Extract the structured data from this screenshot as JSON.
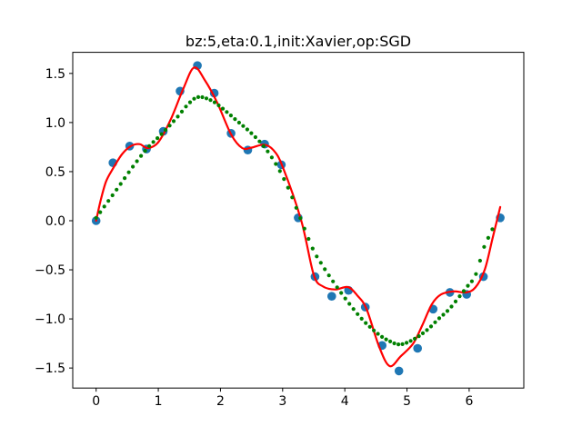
{
  "title": "bz:5,eta:0.1,init:Xavier,op:SGD",
  "colors": {
    "scatter_blue": "#1f77b4",
    "fit_red": "#ff0000",
    "dots_green": "#008000",
    "axis_black": "#000000",
    "background": "#ffffff"
  },
  "axes": {
    "xlim": [
      -0.376,
      6.879
    ],
    "ylim": [
      -1.704,
      1.715
    ],
    "xticks": {
      "values": [
        0,
        1,
        2,
        3,
        4,
        5,
        6
      ],
      "labels": [
        "0",
        "1",
        "2",
        "3",
        "4",
        "5",
        "6"
      ]
    },
    "yticks": {
      "values": [
        -1.5,
        -1.0,
        -0.5,
        0.0,
        0.5,
        1.0,
        1.5
      ],
      "labels": [
        "−1.5",
        "−1.0",
        "−0.5",
        "0.0",
        "0.5",
        "1.0",
        "1.5"
      ]
    }
  },
  "chart_data": {
    "type": "line",
    "title": "bz:5,eta:0.1,init:Xavier,op:SGD",
    "xlabel": "",
    "ylabel": "",
    "xlim": [
      -0.376,
      6.879
    ],
    "ylim": [
      -1.704,
      1.715
    ],
    "grid": false,
    "legend": "none",
    "series": [
      {
        "name": "training-data-scatter",
        "style": "scatter",
        "color": "#1f77b4",
        "marker_radius": 4.8,
        "points": [
          [
            0.0,
            0.0
          ],
          [
            0.27,
            0.59
          ],
          [
            0.54,
            0.76
          ],
          [
            0.81,
            0.73
          ],
          [
            1.08,
            0.91
          ],
          [
            1.35,
            1.32
          ],
          [
            1.63,
            1.58
          ],
          [
            1.9,
            1.3
          ],
          [
            2.17,
            0.89
          ],
          [
            2.44,
            0.72
          ],
          [
            2.71,
            0.78
          ],
          [
            2.98,
            0.57
          ],
          [
            3.25,
            0.03
          ],
          [
            3.52,
            -0.57
          ],
          [
            3.79,
            -0.77
          ],
          [
            4.06,
            -0.71
          ],
          [
            4.33,
            -0.88
          ],
          [
            4.6,
            -1.27
          ],
          [
            4.87,
            -1.53
          ],
          [
            5.17,
            -1.3
          ],
          [
            5.42,
            -0.9
          ],
          [
            5.69,
            -0.73
          ],
          [
            5.96,
            -0.75
          ],
          [
            6.23,
            -0.57
          ],
          [
            6.5,
            0.03
          ]
        ]
      },
      {
        "name": "fit-curve-red",
        "style": "line",
        "color": "#ff0000",
        "line_width": 2.2,
        "points": [
          [
            0.0,
            0.0
          ],
          [
            0.07,
            0.2
          ],
          [
            0.16,
            0.4
          ],
          [
            0.28,
            0.54
          ],
          [
            0.42,
            0.68
          ],
          [
            0.56,
            0.76
          ],
          [
            0.7,
            0.78
          ],
          [
            0.83,
            0.74
          ],
          [
            1.0,
            0.8
          ],
          [
            1.2,
            1.03
          ],
          [
            1.4,
            1.34
          ],
          [
            1.575,
            1.56
          ],
          [
            1.75,
            1.43
          ],
          [
            1.95,
            1.2
          ],
          [
            2.17,
            0.88
          ],
          [
            2.35,
            0.74
          ],
          [
            2.5,
            0.745
          ],
          [
            2.7,
            0.775
          ],
          [
            2.85,
            0.72
          ],
          [
            3.0,
            0.55
          ],
          [
            3.3,
            0.0
          ],
          [
            3.5,
            -0.55
          ],
          [
            3.65,
            -0.67
          ],
          [
            3.85,
            -0.7
          ],
          [
            4.05,
            -0.675
          ],
          [
            4.2,
            -0.76
          ],
          [
            4.35,
            -0.9
          ],
          [
            4.55,
            -1.28
          ],
          [
            4.72,
            -1.48
          ],
          [
            4.9,
            -1.38
          ],
          [
            5.1,
            -1.25
          ],
          [
            5.25,
            -1.06
          ],
          [
            5.4,
            -0.85
          ],
          [
            5.55,
            -0.75
          ],
          [
            5.75,
            -0.72
          ],
          [
            5.95,
            -0.73
          ],
          [
            6.1,
            -0.68
          ],
          [
            6.25,
            -0.5
          ],
          [
            6.38,
            -0.17
          ],
          [
            6.5,
            0.14
          ]
        ]
      },
      {
        "name": "prediction-dotted-green",
        "style": "dotted",
        "color": "#008000",
        "dot_radius": 2.1,
        "sample_x_start": 0.0,
        "sample_x_end": 6.373,
        "sample_count": 98,
        "knots": [
          [
            0.0,
            0.03
          ],
          [
            0.31,
            0.3
          ],
          [
            0.62,
            0.575
          ],
          [
            0.84,
            0.75
          ],
          [
            1.0,
            0.85
          ],
          [
            1.11,
            0.92
          ],
          [
            1.3,
            1.05
          ],
          [
            1.5,
            1.2
          ],
          [
            1.65,
            1.26
          ],
          [
            1.85,
            1.225
          ],
          [
            2.04,
            1.14
          ],
          [
            2.28,
            1.01
          ],
          [
            2.5,
            0.89
          ],
          [
            2.7,
            0.755
          ],
          [
            2.87,
            0.6
          ],
          [
            3.01,
            0.44
          ],
          [
            3.12,
            0.29
          ],
          [
            3.27,
            0.05
          ],
          [
            3.48,
            -0.28
          ],
          [
            3.62,
            -0.435
          ],
          [
            3.84,
            -0.645
          ],
          [
            4.06,
            -0.835
          ],
          [
            4.28,
            -1.005
          ],
          [
            4.52,
            -1.145
          ],
          [
            4.7,
            -1.22
          ],
          [
            4.89,
            -1.26
          ],
          [
            5.1,
            -1.21
          ],
          [
            5.32,
            -1.115
          ],
          [
            5.5,
            -1.005
          ],
          [
            5.68,
            -0.9
          ],
          [
            5.84,
            -0.775
          ],
          [
            6.0,
            -0.645
          ],
          [
            6.1,
            -0.56
          ],
          [
            6.25,
            -0.25
          ],
          [
            6.32,
            -0.16
          ],
          [
            6.4,
            -0.05
          ]
        ]
      }
    ]
  }
}
